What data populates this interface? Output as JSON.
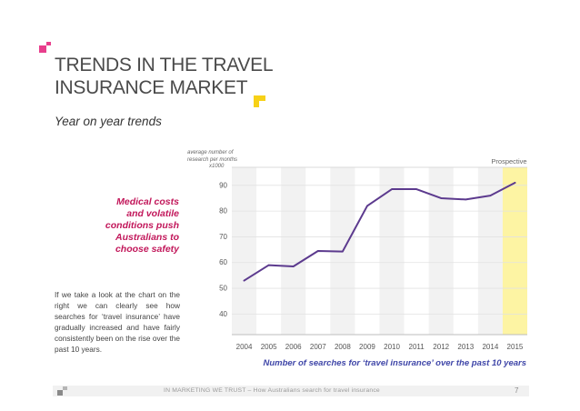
{
  "page": {
    "title_line1": "TRENDS IN THE TRAVEL",
    "title_line2": "INSURANCE MARKET",
    "subtitle": "Year on year trends",
    "quote_lines": [
      "Medical costs",
      "and volatile",
      "conditions push",
      "Australians to",
      "choose safety"
    ],
    "body_text": "If we take a look at the chart on the right we can clearly see how searches for ‘travel insurance’ have gradually increased and have fairly consistently been on the rise over the past 10 years.",
    "accent_pink": "#e83e8c",
    "accent_yellow": "#f7d117"
  },
  "footer": {
    "text": "IN MARKETING WE TRUST – How Australians search for travel insurance",
    "page_number": "7"
  },
  "chart_data": {
    "type": "line",
    "title": "",
    "ylabel_lines": [
      "average number of",
      "research per months",
      "x1000"
    ],
    "xlabel": "Number of searches for ‘travel insurance’ over the past 10 years",
    "x": [
      "2004",
      "2005",
      "2006",
      "2007",
      "2008",
      "2009",
      "2010",
      "2011",
      "2012",
      "2013",
      "2014",
      "2015"
    ],
    "series": [
      {
        "values": [
          53,
          59,
          58.5,
          64.5,
          64.3,
          82,
          88.5,
          88.5,
          85,
          84.5,
          86,
          91
        ]
      }
    ],
    "ylim": [
      32,
      97
    ],
    "yticks": [
      40,
      50,
      60,
      70,
      80,
      90
    ],
    "prospective_label": "Prospective",
    "prospective_year": "2015",
    "line_color": "#5c3a8e",
    "band_color": "#f2f2f2",
    "prospective_color": "#fdf4a3",
    "grid": true
  }
}
